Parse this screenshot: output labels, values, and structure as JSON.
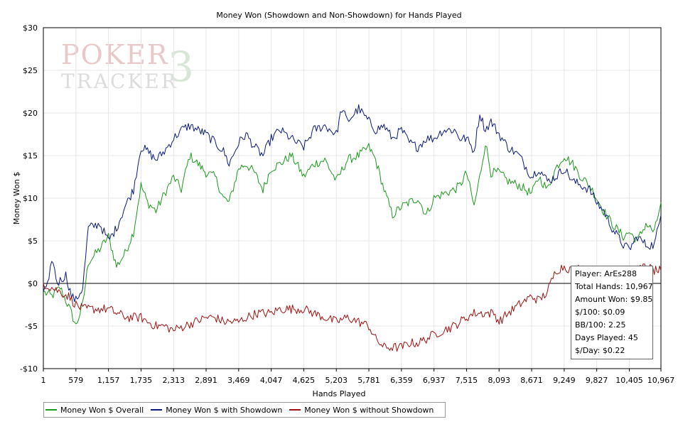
{
  "chart_data": {
    "type": "line",
    "title": "Money Won (Showdown and Non-Showdown) for Hands Played",
    "xlabel": "Hands Played",
    "ylabel": "Money Won $",
    "xlim": [
      1,
      10967
    ],
    "ylim": [
      -10,
      30
    ],
    "grid": true,
    "legend_position": "bottom-left",
    "x_ticks": [
      1,
      579,
      1157,
      1735,
      2313,
      2891,
      3469,
      4047,
      4625,
      5203,
      5781,
      6359,
      6937,
      7515,
      8093,
      8671,
      9249,
      9827,
      10405,
      10967
    ],
    "x_tick_labels": [
      "1",
      "579",
      "1,157",
      "1,735",
      "2,313",
      "2,891",
      "3,469",
      "4,047",
      "4,625",
      "5,203",
      "5,781",
      "6,359",
      "6,937",
      "7,515",
      "8,093",
      "8,671",
      "9,249",
      "9,827",
      "10,405",
      "10,967"
    ],
    "y_ticks": [
      -10,
      -5,
      0,
      5,
      10,
      15,
      20,
      25,
      30
    ],
    "y_tick_labels": [
      "-$10",
      "-$5",
      "$0",
      "$5",
      "$10",
      "$15",
      "$20",
      "$25",
      "$30"
    ],
    "series": [
      {
        "name": "Money Won $ Overall",
        "color": "#1a9a1a",
        "points": [
          [
            1,
            -1.0
          ],
          [
            150,
            -1.5
          ],
          [
            300,
            -0.5
          ],
          [
            400,
            -2.0
          ],
          [
            500,
            -3.5
          ],
          [
            579,
            -5.0
          ],
          [
            700,
            -2.5
          ],
          [
            800,
            2.5
          ],
          [
            1000,
            4.0
          ],
          [
            1157,
            5.5
          ],
          [
            1300,
            2.0
          ],
          [
            1450,
            3.5
          ],
          [
            1600,
            6.0
          ],
          [
            1735,
            11.5
          ],
          [
            1850,
            9.5
          ],
          [
            2000,
            8.5
          ],
          [
            2150,
            10.5
          ],
          [
            2313,
            12.5
          ],
          [
            2450,
            11.0
          ],
          [
            2600,
            15.0
          ],
          [
            2750,
            14.0
          ],
          [
            2891,
            13.0
          ],
          [
            3050,
            12.5
          ],
          [
            3200,
            10.0
          ],
          [
            3300,
            9.5
          ],
          [
            3469,
            13.5
          ],
          [
            3600,
            14.0
          ],
          [
            3750,
            13.0
          ],
          [
            3900,
            11.0
          ],
          [
            4047,
            13.5
          ],
          [
            4200,
            14.0
          ],
          [
            4400,
            15.0
          ],
          [
            4500,
            14.0
          ],
          [
            4625,
            12.5
          ],
          [
            4800,
            14.0
          ],
          [
            5000,
            14.5
          ],
          [
            5203,
            12.0
          ],
          [
            5400,
            14.5
          ],
          [
            5600,
            15.0
          ],
          [
            5781,
            16.0
          ],
          [
            5900,
            14.5
          ],
          [
            6050,
            11.0
          ],
          [
            6200,
            8.0
          ],
          [
            6359,
            9.0
          ],
          [
            6500,
            9.5
          ],
          [
            6650,
            10.0
          ],
          [
            6800,
            8.0
          ],
          [
            6937,
            10.0
          ],
          [
            7100,
            10.5
          ],
          [
            7300,
            11.0
          ],
          [
            7400,
            11.5
          ],
          [
            7515,
            13.0
          ],
          [
            7650,
            9.0
          ],
          [
            7750,
            12.5
          ],
          [
            7850,
            16.5
          ],
          [
            7950,
            13.0
          ],
          [
            8093,
            13.0
          ],
          [
            8250,
            12.0
          ],
          [
            8450,
            11.5
          ],
          [
            8671,
            10.5
          ],
          [
            8800,
            12.5
          ],
          [
            8950,
            11.0
          ],
          [
            9100,
            13.5
          ],
          [
            9249,
            15.0
          ],
          [
            9400,
            14.0
          ],
          [
            9550,
            12.5
          ],
          [
            9700,
            11.5
          ],
          [
            9827,
            10.0
          ],
          [
            9950,
            8.5
          ],
          [
            10100,
            7.0
          ],
          [
            10300,
            5.5
          ],
          [
            10405,
            6.0
          ],
          [
            10550,
            5.0
          ],
          [
            10700,
            7.0
          ],
          [
            10850,
            6.0
          ],
          [
            10967,
            9.5
          ]
        ]
      },
      {
        "name": "Money Won $ with Showdown",
        "color": "#0a1a7a",
        "points": [
          [
            1,
            -1.0
          ],
          [
            100,
            0.0
          ],
          [
            150,
            3.0
          ],
          [
            250,
            0.0
          ],
          [
            400,
            1.0
          ],
          [
            500,
            -1.5
          ],
          [
            579,
            -2.0
          ],
          [
            700,
            -0.5
          ],
          [
            800,
            6.5
          ],
          [
            1000,
            7.0
          ],
          [
            1157,
            5.0
          ],
          [
            1300,
            6.5
          ],
          [
            1450,
            9.0
          ],
          [
            1600,
            11.0
          ],
          [
            1735,
            16.0
          ],
          [
            1850,
            15.5
          ],
          [
            2000,
            14.5
          ],
          [
            2150,
            15.5
          ],
          [
            2313,
            17.0
          ],
          [
            2450,
            18.0
          ],
          [
            2600,
            18.5
          ],
          [
            2750,
            18.0
          ],
          [
            2891,
            17.5
          ],
          [
            3050,
            16.5
          ],
          [
            3200,
            15.5
          ],
          [
            3300,
            14.0
          ],
          [
            3469,
            16.5
          ],
          [
            3600,
            17.5
          ],
          [
            3750,
            16.0
          ],
          [
            3900,
            15.0
          ],
          [
            4047,
            17.0
          ],
          [
            4200,
            18.0
          ],
          [
            4400,
            17.0
          ],
          [
            4500,
            16.5
          ],
          [
            4625,
            16.0
          ],
          [
            4800,
            18.0
          ],
          [
            5000,
            18.5
          ],
          [
            5203,
            17.5
          ],
          [
            5300,
            20.5
          ],
          [
            5400,
            19.0
          ],
          [
            5600,
            20.5
          ],
          [
            5781,
            19.0
          ],
          [
            5900,
            18.0
          ],
          [
            6050,
            18.5
          ],
          [
            6200,
            17.0
          ],
          [
            6359,
            18.0
          ],
          [
            6500,
            16.5
          ],
          [
            6650,
            16.0
          ],
          [
            6800,
            17.0
          ],
          [
            6937,
            17.0
          ],
          [
            7100,
            18.0
          ],
          [
            7300,
            18.0
          ],
          [
            7400,
            17.0
          ],
          [
            7515,
            17.0
          ],
          [
            7650,
            15.5
          ],
          [
            7750,
            20.0
          ],
          [
            7850,
            18.0
          ],
          [
            7950,
            19.0
          ],
          [
            8093,
            17.5
          ],
          [
            8250,
            16.0
          ],
          [
            8450,
            15.0
          ],
          [
            8671,
            12.5
          ],
          [
            8800,
            13.5
          ],
          [
            8950,
            12.0
          ],
          [
            9100,
            12.5
          ],
          [
            9249,
            13.5
          ],
          [
            9400,
            12.0
          ],
          [
            9550,
            11.5
          ],
          [
            9700,
            11.0
          ],
          [
            9827,
            9.5
          ],
          [
            9950,
            8.5
          ],
          [
            10100,
            6.5
          ],
          [
            10300,
            4.5
          ],
          [
            10405,
            4.0
          ],
          [
            10550,
            5.5
          ],
          [
            10700,
            4.5
          ],
          [
            10850,
            4.5
          ],
          [
            10967,
            8.0
          ]
        ]
      },
      {
        "name": "Money Won $ without Showdown",
        "color": "#a01010",
        "points": [
          [
            1,
            0.0
          ],
          [
            150,
            -0.5
          ],
          [
            300,
            -1.0
          ],
          [
            450,
            -1.5
          ],
          [
            579,
            -2.5
          ],
          [
            700,
            -3.0
          ],
          [
            900,
            -3.0
          ],
          [
            1157,
            -3.0
          ],
          [
            1300,
            -3.5
          ],
          [
            1500,
            -4.0
          ],
          [
            1735,
            -4.0
          ],
          [
            1850,
            -4.5
          ],
          [
            2000,
            -5.0
          ],
          [
            2150,
            -5.0
          ],
          [
            2313,
            -5.5
          ],
          [
            2500,
            -5.0
          ],
          [
            2700,
            -4.5
          ],
          [
            2891,
            -4.0
          ],
          [
            3050,
            -4.0
          ],
          [
            3200,
            -4.5
          ],
          [
            3469,
            -4.5
          ],
          [
            3600,
            -4.0
          ],
          [
            3800,
            -3.5
          ],
          [
            4047,
            -3.5
          ],
          [
            4200,
            -3.0
          ],
          [
            4400,
            -3.0
          ],
          [
            4625,
            -3.0
          ],
          [
            4800,
            -3.5
          ],
          [
            5000,
            -4.0
          ],
          [
            5203,
            -4.5
          ],
          [
            5400,
            -4.0
          ],
          [
            5600,
            -4.5
          ],
          [
            5781,
            -5.0
          ],
          [
            5900,
            -6.5
          ],
          [
            6050,
            -7.5
          ],
          [
            6200,
            -7.5
          ],
          [
            6359,
            -7.5
          ],
          [
            6500,
            -7.0
          ],
          [
            6650,
            -7.0
          ],
          [
            6800,
            -6.5
          ],
          [
            6937,
            -6.0
          ],
          [
            7100,
            -5.5
          ],
          [
            7300,
            -5.0
          ],
          [
            7400,
            -4.5
          ],
          [
            7515,
            -4.0
          ],
          [
            7650,
            -3.5
          ],
          [
            7850,
            -3.5
          ],
          [
            8000,
            -3.5
          ],
          [
            8093,
            -4.5
          ],
          [
            8250,
            -3.5
          ],
          [
            8450,
            -2.5
          ],
          [
            8671,
            -1.5
          ],
          [
            8800,
            -2.0
          ],
          [
            8950,
            -1.0
          ],
          [
            9100,
            1.5
          ],
          [
            9249,
            2.0
          ],
          [
            9400,
            1.5
          ],
          [
            9550,
            2.0
          ],
          [
            9700,
            1.5
          ],
          [
            9827,
            1.0
          ],
          [
            9950,
            1.5
          ],
          [
            10100,
            1.0
          ],
          [
            10300,
            1.5
          ],
          [
            10405,
            1.0
          ],
          [
            10550,
            1.5
          ],
          [
            10700,
            2.0
          ],
          [
            10850,
            1.5
          ],
          [
            10967,
            1.5
          ]
        ]
      }
    ],
    "info_box": {
      "player": "Player: ArEs288",
      "total_hands": "Total Hands: 10,967",
      "amount_won": "Amount Won: $9.85",
      "per_100": "$/100: $0.09",
      "bb_per_100": "BB/100: 2.25",
      "days_played": "Days Played: 45",
      "per_day": "$/Day: $0.22"
    },
    "watermark": {
      "line1": "POKER",
      "digit": "3",
      "line2": "TRACKER"
    }
  }
}
